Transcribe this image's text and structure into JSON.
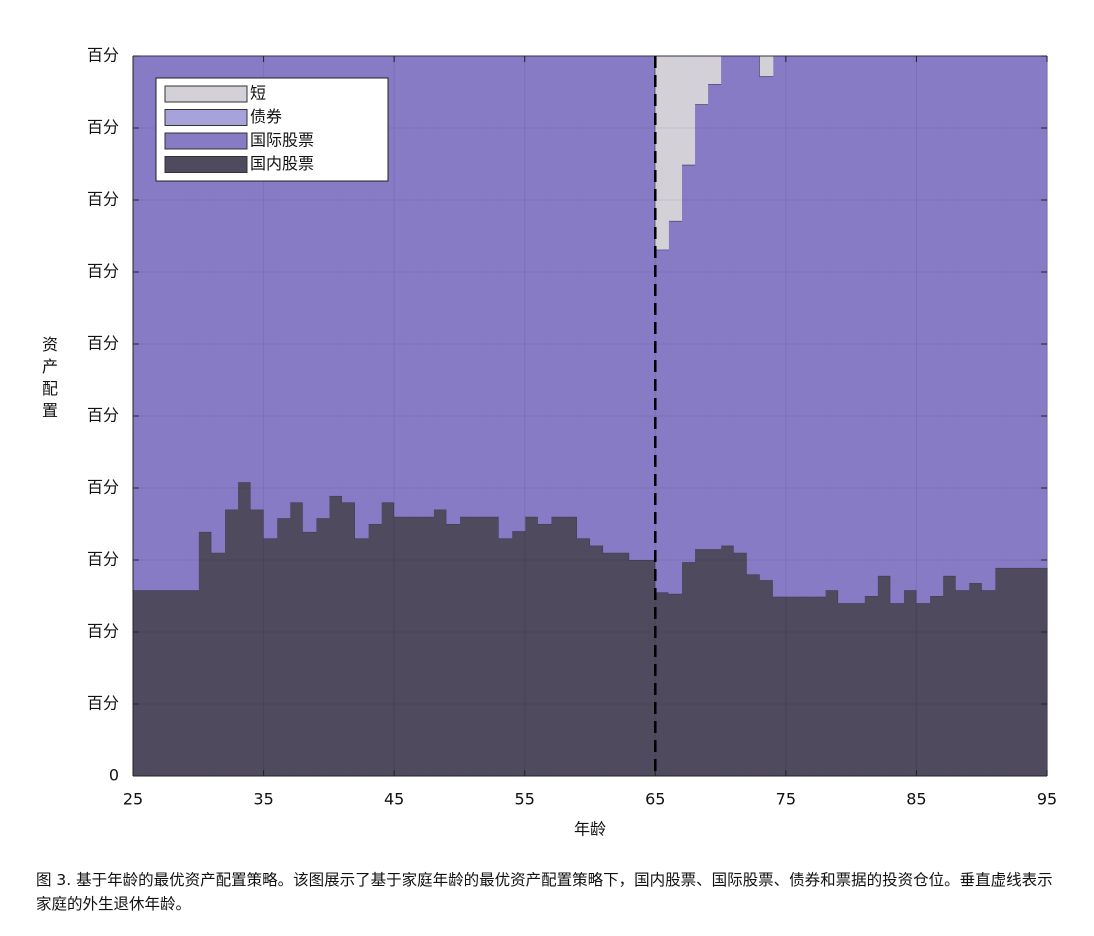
{
  "chart_data": {
    "type": "stacked_step_area",
    "xlabel": "年龄",
    "ylabel": "资产配置",
    "caption": "图 3. 基于年龄的最优资产配置策略。该图展示了基于家庭年龄的最优资产配置策略下，国内股票、国际股票、债券和票据的投资仓位。垂直虚线表示家庭的外生退休年龄。",
    "x": [
      25,
      26,
      27,
      28,
      29,
      30,
      31,
      32,
      33,
      34,
      35,
      36,
      37,
      38,
      39,
      40,
      41,
      42,
      43,
      44,
      45,
      46,
      47,
      48,
      49,
      50,
      51,
      52,
      53,
      54,
      55,
      56,
      57,
      58,
      59,
      60,
      61,
      62,
      63,
      64,
      65,
      66,
      67,
      68,
      69,
      70,
      71,
      72,
      73,
      74,
      75,
      76,
      77,
      78,
      79,
      80,
      81,
      82,
      83,
      84,
      85,
      86,
      87,
      88,
      89,
      90,
      91,
      92,
      93,
      94
    ],
    "series": [
      {
        "name": "国内股票",
        "color": "#4f4a5e",
        "values": [
          25.8,
          25.8,
          25.8,
          25.8,
          25.8,
          33.9,
          31,
          37,
          40.8,
          37,
          33,
          35.8,
          38,
          33.9,
          35.8,
          38.9,
          38,
          33,
          35,
          38,
          36,
          36,
          36,
          37,
          35,
          36,
          36,
          36,
          33,
          34,
          36,
          35,
          36,
          36,
          33,
          32,
          31,
          31,
          30,
          30,
          25.5,
          25.3,
          29.7,
          31.5,
          31.5,
          32,
          31,
          28,
          27.2,
          24.9,
          24.9,
          24.9,
          24.9,
          25.8,
          24,
          24,
          25,
          27.8,
          24,
          25.8,
          24,
          25,
          27.8,
          25.8,
          26.8,
          25.8,
          28.9,
          28.9,
          28.9,
          28.9
        ]
      },
      {
        "name": "国际股票",
        "color": "#877bc6",
        "values": [
          74.2,
          74.2,
          74.2,
          74.2,
          74.2,
          66.1,
          69,
          63,
          59.2,
          63,
          67,
          64.2,
          62,
          66.1,
          64.2,
          61.1,
          62,
          67,
          65,
          62,
          64,
          64,
          64,
          63,
          65,
          64,
          64,
          64,
          67,
          66,
          64,
          65,
          64,
          64,
          67,
          68,
          69,
          69,
          70,
          70,
          47.6,
          51.8,
          55.2,
          61.8,
          64.6,
          68,
          69,
          72,
          70,
          75.1,
          75.1,
          75.1,
          75.1,
          74.2,
          76,
          76,
          75,
          72.2,
          76,
          74.2,
          76,
          75,
          72.2,
          74.2,
          73.2,
          74.2,
          71.1,
          71.1,
          71.1,
          71.1
        ]
      },
      {
        "name": "债券",
        "color": "#a7a2d9",
        "values": [
          0,
          0,
          0,
          0,
          0,
          0,
          0,
          0,
          0,
          0,
          0,
          0,
          0,
          0,
          0,
          0,
          0,
          0,
          0,
          0,
          0,
          0,
          0,
          0,
          0,
          0,
          0,
          0,
          0,
          0,
          0,
          0,
          0,
          0,
          0,
          0,
          0,
          0,
          0,
          0,
          0,
          0,
          0,
          0,
          0,
          0,
          0,
          0,
          0,
          0,
          0,
          0,
          0,
          0,
          0,
          0,
          0,
          0,
          0,
          0,
          0,
          0,
          0,
          0,
          0,
          0,
          0,
          0,
          0,
          0
        ]
      },
      {
        "name": "短",
        "color": "#d3d0d8",
        "values": [
          0,
          0,
          0,
          0,
          0,
          0,
          0,
          0,
          0,
          0,
          0,
          0,
          0,
          0,
          0,
          0,
          0,
          0,
          0,
          0,
          0,
          0,
          0,
          0,
          0,
          0,
          0,
          0,
          0,
          0,
          0,
          0,
          0,
          0,
          0,
          0,
          0,
          0,
          0,
          0,
          26.9,
          22.9,
          15.1,
          6.7,
          3.9,
          0,
          0,
          0,
          2.8,
          0,
          0,
          0,
          0,
          0,
          0,
          0,
          0,
          0,
          0,
          0,
          0,
          0,
          0,
          0,
          0,
          0,
          0,
          0,
          0,
          0
        ]
      }
    ],
    "xlim": [
      25,
      95
    ],
    "xticks": [
      25,
      35,
      45,
      55,
      65,
      75,
      85,
      95
    ],
    "ylim": [
      0,
      100
    ],
    "yticks": [
      0,
      {
        "value": 10,
        "label": "百分"
      },
      {
        "value": 20,
        "label": "百分"
      },
      {
        "value": 30,
        "label": "百分"
      },
      {
        "value": 40,
        "label": "百分"
      },
      {
        "value": 50,
        "label": "百分"
      },
      {
        "value": 60,
        "label": "百分"
      },
      {
        "value": 70,
        "label": "百分"
      },
      {
        "value": 80,
        "label": "百分"
      },
      {
        "value": 90,
        "label": "百分"
      },
      {
        "value": 100,
        "label": "百分"
      }
    ],
    "vline": 65,
    "grid": true,
    "legend": "upper-left"
  }
}
